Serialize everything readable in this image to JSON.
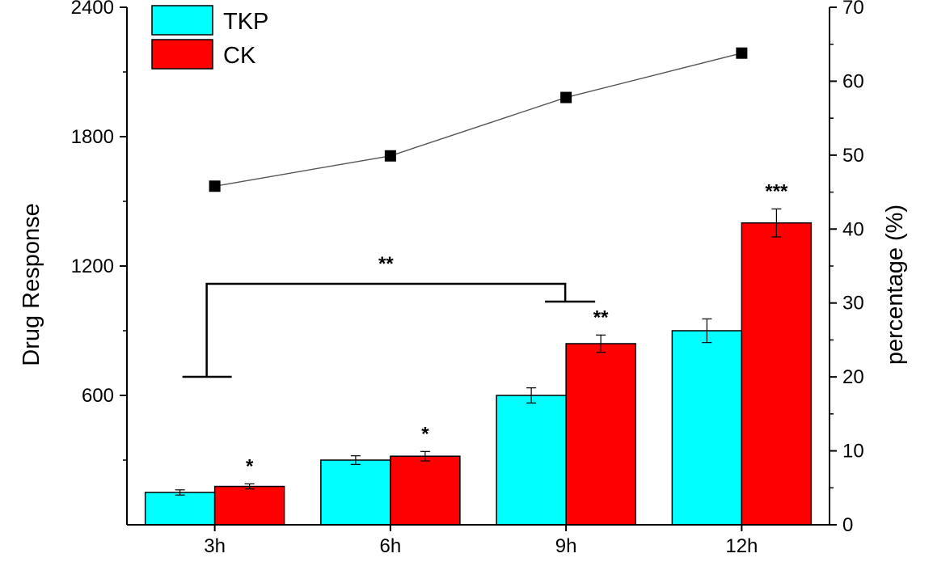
{
  "chart_data": {
    "type": "bar",
    "categories": [
      "3h",
      "6h",
      "9h",
      "12h"
    ],
    "ylabel": "Drug Response",
    "y2label": "percentage (%)",
    "ylim": [
      0,
      2400
    ],
    "y2lim": [
      0,
      70
    ],
    "yticks": [
      "600",
      "1200",
      "1800",
      "2400"
    ],
    "y2ticks": [
      "0",
      "10",
      "20",
      "30",
      "40",
      "50",
      "60",
      "70"
    ],
    "legend_position": "top-left",
    "grid": false,
    "series": [
      {
        "name": "TKP",
        "color": "#00FFFF",
        "values": [
          150,
          300,
          600,
          900
        ],
        "errors": [
          12,
          20,
          35,
          55
        ]
      },
      {
        "name": "CK",
        "color": "#FF0000",
        "values": [
          178,
          318,
          840,
          1400
        ],
        "errors": [
          12,
          22,
          40,
          65
        ]
      }
    ],
    "line_series": {
      "axis": "right",
      "color": "#000000",
      "values": [
        45.8,
        49.9,
        57.8,
        63.8
      ]
    },
    "significance": [
      "*",
      "*",
      "**",
      "***"
    ],
    "bracket_label": "**"
  }
}
